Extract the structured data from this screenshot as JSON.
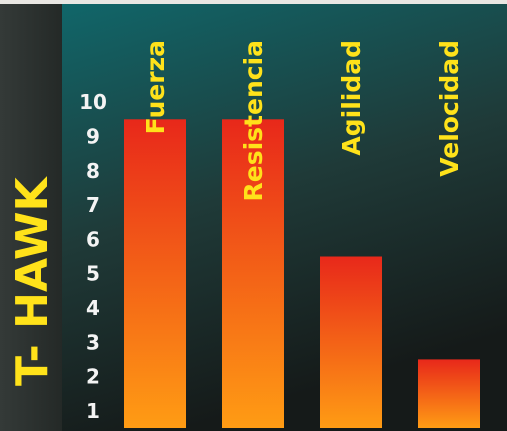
{
  "chart_data": {
    "type": "bar",
    "title": "T- HAWK",
    "categories": [
      "Fuerza",
      "Resistencia",
      "Agilidad",
      "Velocidad"
    ],
    "values": [
      9,
      9,
      5,
      2
    ],
    "ylim": [
      0,
      10
    ],
    "yticks": [
      1,
      2,
      3,
      4,
      5,
      6,
      7,
      8,
      9,
      10
    ],
    "grid": false,
    "legend": "none"
  },
  "colors": {
    "background_top": "#0f6a6e",
    "background_bottom": "#151a19",
    "sidebar": "#2a2f2d",
    "bar_top": "#e8281a",
    "bar_bottom": "#ff9c14",
    "label": "#ffe21a",
    "tick": "#f4f4f4"
  }
}
